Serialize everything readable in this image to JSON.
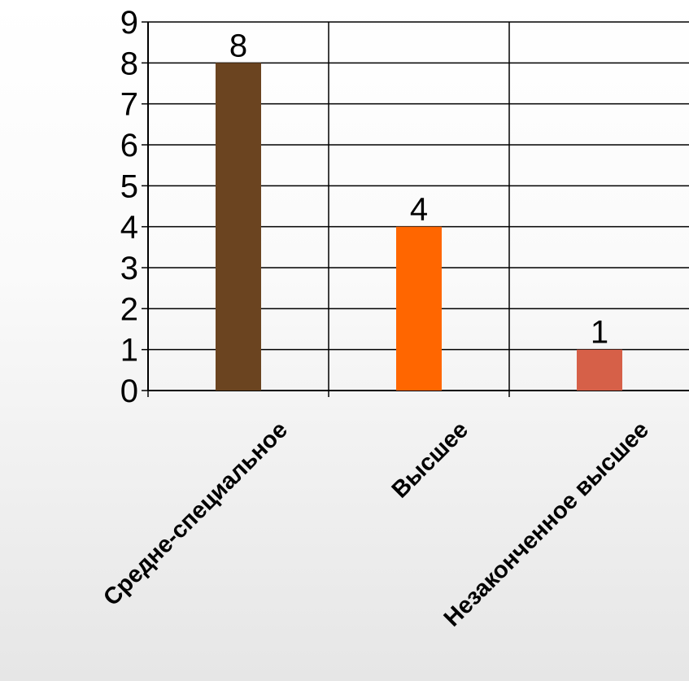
{
  "chart_data": {
    "type": "bar",
    "categories": [
      "Средне-специальное",
      "Высшее",
      "Незаконченное высшее"
    ],
    "values": [
      8,
      4,
      1
    ],
    "colors": [
      "#6b4420",
      "#ff6600",
      "#d66048"
    ],
    "title": "",
    "xlabel": "",
    "ylabel": "",
    "ylim": [
      0,
      9
    ],
    "yticks": [
      "0",
      "1",
      "2",
      "3",
      "4",
      "5",
      "6",
      "7",
      "8",
      "9"
    ],
    "data_labels": [
      "8",
      "4",
      "1"
    ],
    "grid": true,
    "legend": "none"
  }
}
